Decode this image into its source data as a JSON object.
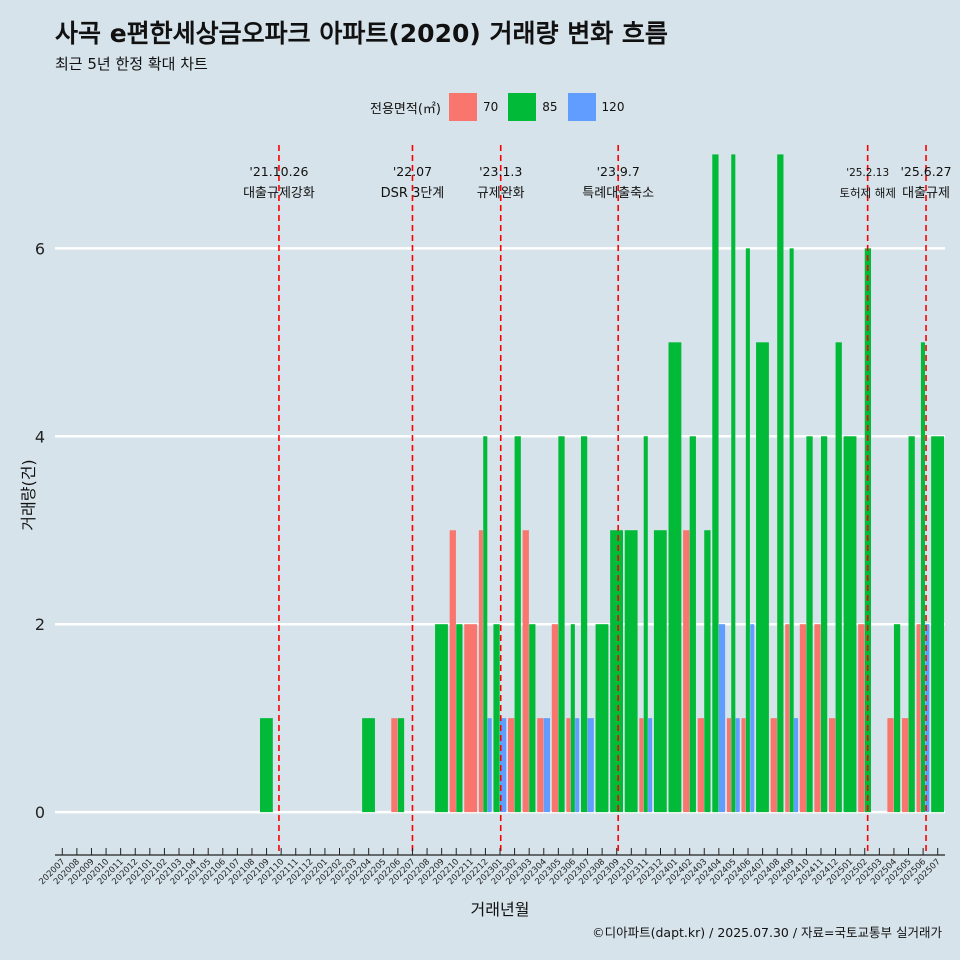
{
  "chart_data": {
    "type": "bar",
    "title": "사곡 e편한세상금오파크 아파트(2020) 거래량 변화 흐름",
    "subtitle": "최근 5년 한정 확대 차트",
    "xlabel": "거래년월",
    "ylabel": "거래량(건)",
    "legend_title": "전용면적(㎡)",
    "legend_position": "top",
    "grid": true,
    "ylim": [
      -0.35,
      7.1
    ],
    "yticks": [
      0,
      2,
      4,
      6
    ],
    "categories": [
      "202007",
      "202008",
      "202009",
      "202010",
      "202011",
      "202012",
      "202101",
      "202102",
      "202103",
      "202104",
      "202105",
      "202106",
      "202107",
      "202108",
      "202109",
      "202110",
      "202111",
      "202112",
      "202201",
      "202202",
      "202203",
      "202204",
      "202205",
      "202206",
      "202207",
      "202208",
      "202209",
      "202210",
      "202211",
      "202212",
      "202301",
      "202302",
      "202303",
      "202304",
      "202305",
      "202306",
      "202307",
      "202308",
      "202309",
      "202310",
      "202311",
      "202312",
      "202401",
      "202402",
      "202403",
      "202404",
      "202405",
      "202406",
      "202407",
      "202408",
      "202409",
      "202410",
      "202411",
      "202412",
      "202501",
      "202502",
      "202503",
      "202504",
      "202505",
      "202506",
      "202507"
    ],
    "series": [
      {
        "name": "70",
        "color": "#f8766d",
        "values": [
          0,
          0,
          0,
          0,
          0,
          0,
          0,
          0,
          0,
          0,
          0,
          0,
          0,
          0,
          0,
          0,
          0,
          0,
          0,
          0,
          0,
          0,
          0,
          1,
          0,
          0,
          0,
          3,
          2,
          3,
          0,
          1,
          3,
          1,
          2,
          1,
          0,
          0,
          0,
          0,
          1,
          0,
          0,
          3,
          1,
          0,
          1,
          1,
          0,
          1,
          2,
          2,
          2,
          1,
          0,
          2,
          0,
          1,
          1,
          2,
          0
        ]
      },
      {
        "name": "85",
        "color": "#00ba38",
        "values": [
          0,
          0,
          0,
          0,
          0,
          0,
          0,
          0,
          0,
          0,
          0,
          0,
          0,
          0,
          1,
          0,
          0,
          0,
          0,
          0,
          0,
          1,
          0,
          1,
          0,
          0,
          2,
          2,
          0,
          4,
          2,
          4,
          2,
          0,
          4,
          2,
          4,
          2,
          3,
          3,
          4,
          3,
          5,
          4,
          3,
          7,
          7,
          6,
          5,
          7,
          6,
          4,
          4,
          5,
          4,
          6,
          0,
          2,
          4,
          5,
          4
        ]
      },
      {
        "name": "120",
        "color": "#619cff",
        "values": [
          0,
          0,
          0,
          0,
          0,
          0,
          0,
          0,
          0,
          0,
          0,
          0,
          0,
          0,
          0,
          0,
          0,
          0,
          0,
          0,
          0,
          0,
          0,
          0,
          0,
          0,
          0,
          0,
          0,
          1,
          1,
          0,
          0,
          1,
          0,
          1,
          1,
          0,
          0,
          0,
          1,
          0,
          0,
          0,
          0,
          2,
          1,
          2,
          0,
          0,
          1,
          0,
          0,
          0,
          0,
          0,
          0,
          0,
          0,
          2,
          0
        ]
      }
    ],
    "annotations": [
      {
        "date": "'21.10.26",
        "text": "대출규제강화",
        "position": 15.35
      },
      {
        "date": "'22.07",
        "text": "DSR 3단계",
        "position": 24.5
      },
      {
        "date": "'23.1.3",
        "text": "규제완화",
        "position": 30.55
      },
      {
        "date": "'23.9.7",
        "text": "특례대출축소",
        "position": 38.6
      },
      {
        "date": "'25.2.13",
        "text": "토허제 해제",
        "position": 55.7
      },
      {
        "date": "'25.6.27",
        "text": "대출규제",
        "position": 59.7
      }
    ]
  },
  "caption": "©디아파트(dapt.kr) / 2025.07.30 / 자료=국토교통부 실거래가",
  "colors": {
    "background": "#d6e3ea",
    "grid": "#ffffff",
    "event_line": "#ff0000"
  }
}
